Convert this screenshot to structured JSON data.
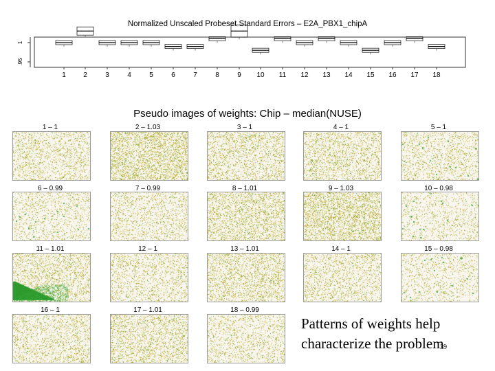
{
  "boxplot": {
    "title": "Normalized Unscaled Probeset Standard Errors –  E2A_PBX1_chipA",
    "y_ticks": [
      "1",
      ".95"
    ],
    "x_ticks": [
      "1",
      "2",
      "3",
      "4",
      "5",
      "6",
      "7",
      "8",
      "9",
      "10",
      "11",
      "12",
      "13",
      "14",
      "15",
      "16",
      "17",
      "18"
    ],
    "medians": [
      1.0,
      1.03,
      1.0,
      1.0,
      1.0,
      0.99,
      0.99,
      1.01,
      1.03,
      0.98,
      1.01,
      1.0,
      1.01,
      1.0,
      0.98,
      1.0,
      1.01,
      0.99
    ]
  },
  "pseudo": {
    "title": "Pseudo images of weights: Chip – median(NUSE)",
    "tiles": [
      {
        "label": "1 – 1"
      },
      {
        "label": "2 – 1.03"
      },
      {
        "label": "3 – 1"
      },
      {
        "label": "4 – 1"
      },
      {
        "label": "5 – 1"
      },
      {
        "label": "6 – 0.99"
      },
      {
        "label": "7 – 0.99"
      },
      {
        "label": "8 – 1.01"
      },
      {
        "label": "9 – 1.03"
      },
      {
        "label": "10 – 0.98"
      },
      {
        "label": "11 – 1.01"
      },
      {
        "label": "12 – 1"
      },
      {
        "label": "13 – 1.01"
      },
      {
        "label": "14 – 1"
      },
      {
        "label": "15 – 0.98"
      },
      {
        "label": "16 – 1"
      },
      {
        "label": "17 – 1.01"
      },
      {
        "label": "18 – 0.99"
      }
    ]
  },
  "caption": {
    "line1": "Patterns of weights help",
    "line2": "characterize the problem"
  },
  "page_number": "39"
}
